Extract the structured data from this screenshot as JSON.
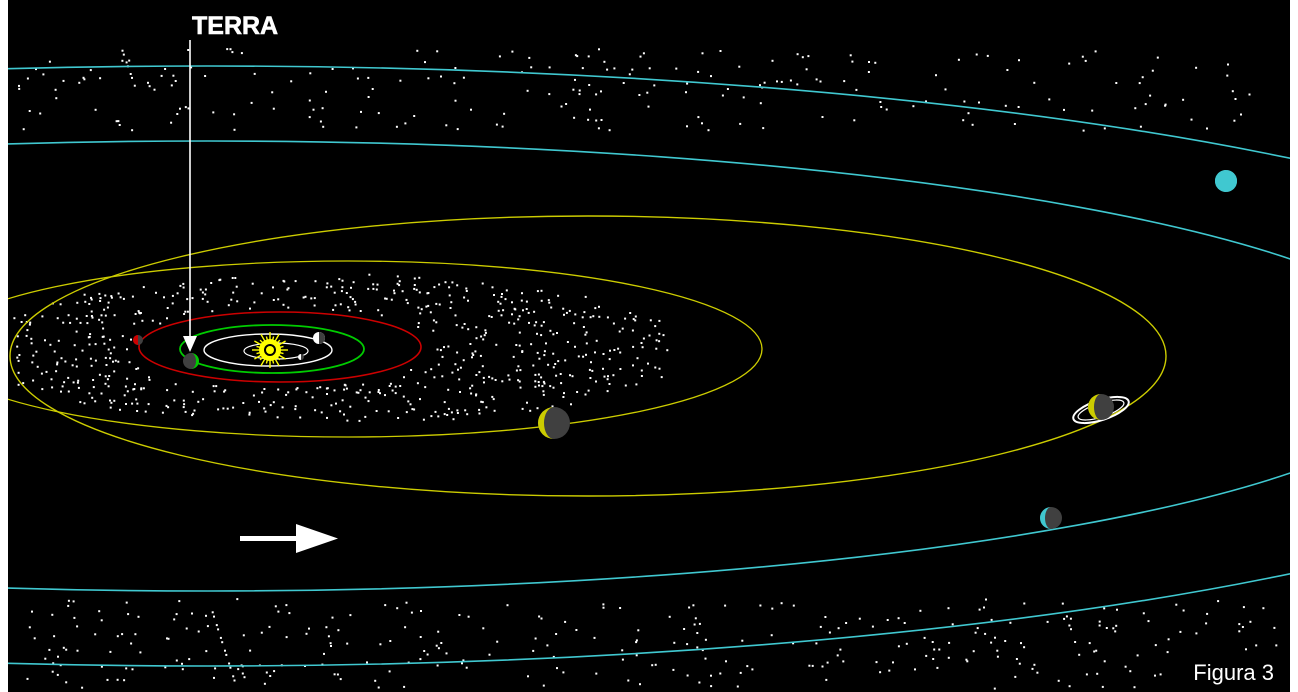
{
  "labels": {
    "earth": "TERRA",
    "figure": "Figura 3"
  },
  "colors": {
    "background": "#000000",
    "stars": "#ffffff",
    "mercury_orbit": "#ffffff",
    "venus_orbit": "#ffffff",
    "earth_orbit": "#00cc00",
    "mars_orbit": "#cc0000",
    "jupiter_orbit": "#cccc00",
    "saturn_orbit": "#cccc00",
    "uranus_orbit": "#40c8d0",
    "neptune_orbit": "#40c8d0",
    "sun": "#ffff00",
    "planet_dark": "#404040"
  },
  "icons": {
    "earth_pointer": "down-arrow-icon",
    "motion_direction": "right-arrow-icon"
  }
}
